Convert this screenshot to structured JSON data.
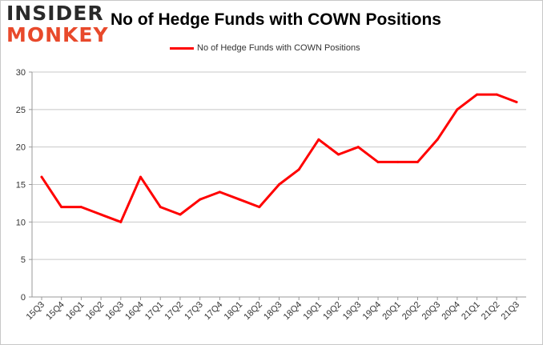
{
  "logo": {
    "line1": "INSIDER",
    "line2": "MONKEY"
  },
  "chart_data": {
    "type": "line",
    "title": "No of Hedge Funds with COWN Positions",
    "xlabel": "",
    "ylabel": "",
    "categories": [
      "15Q3",
      "15Q4",
      "16Q1",
      "16Q2",
      "16Q3",
      "16Q4",
      "17Q1",
      "17Q2",
      "17Q3",
      "17Q4",
      "18Q1",
      "18Q2",
      "18Q3",
      "18Q4",
      "19Q1",
      "19Q2",
      "19Q3",
      "19Q4",
      "20Q1",
      "20Q2",
      "20Q3",
      "20Q4",
      "21Q1",
      "21Q2",
      "21Q3"
    ],
    "series": [
      {
        "name": "No of Hedge Funds with COWN Positions",
        "color": "#ff0000",
        "values": [
          16,
          12,
          12,
          11,
          10,
          16,
          12,
          11,
          13,
          14,
          13,
          12,
          15,
          17,
          21,
          19,
          20,
          18,
          18,
          18,
          21,
          25,
          27,
          27,
          26
        ]
      }
    ],
    "ylim": [
      0,
      30
    ],
    "yticks": [
      0,
      5,
      10,
      15,
      20,
      25,
      30
    ],
    "grid": true,
    "legend": "top-center"
  }
}
